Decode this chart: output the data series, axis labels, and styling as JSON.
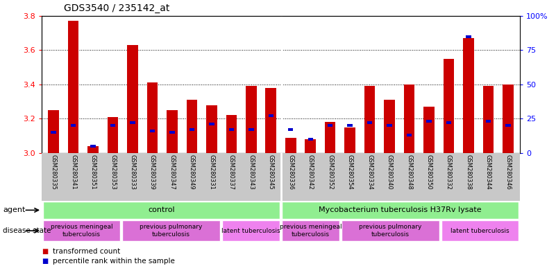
{
  "title": "GDS3540 / 235142_at",
  "samples": [
    "GSM280335",
    "GSM280341",
    "GSM280351",
    "GSM280353",
    "GSM280333",
    "GSM280339",
    "GSM280347",
    "GSM280349",
    "GSM280331",
    "GSM280337",
    "GSM280343",
    "GSM280345",
    "GSM280336",
    "GSM280342",
    "GSM280352",
    "GSM280354",
    "GSM280334",
    "GSM280340",
    "GSM280348",
    "GSM280350",
    "GSM280332",
    "GSM280338",
    "GSM280344",
    "GSM280346"
  ],
  "transformed_count": [
    3.25,
    3.77,
    3.04,
    3.21,
    3.63,
    3.41,
    3.25,
    3.31,
    3.28,
    3.22,
    3.39,
    3.38,
    3.09,
    3.08,
    3.18,
    3.15,
    3.39,
    3.31,
    3.4,
    3.27,
    3.55,
    3.67,
    3.39,
    3.4
  ],
  "percentile_rank": [
    15,
    20,
    5,
    20,
    22,
    16,
    15,
    17,
    21,
    17,
    17,
    27,
    17,
    10,
    20,
    20,
    22,
    20,
    13,
    23,
    22,
    85,
    23,
    20
  ],
  "ylim_left": [
    3.0,
    3.8
  ],
  "ylim_right": [
    0,
    100
  ],
  "yticks_left": [
    3.0,
    3.2,
    3.4,
    3.6,
    3.8
  ],
  "yticks_right": [
    0,
    25,
    50,
    75,
    100
  ],
  "bar_color_red": "#cc0000",
  "bar_color_blue": "#0000cc",
  "agent_groups": [
    {
      "label": "control",
      "start": 0,
      "end": 11
    },
    {
      "label": "Mycobacterium tuberculosis H37Rv lysate",
      "start": 12,
      "end": 23
    }
  ],
  "disease_groups": [
    {
      "label": "previous meningeal\ntuberculosis",
      "start": 0,
      "end": 3,
      "type": "prev"
    },
    {
      "label": "previous pulmonary\ntuberculosis",
      "start": 4,
      "end": 8,
      "type": "prev"
    },
    {
      "label": "latent tuberculosis",
      "start": 9,
      "end": 11,
      "type": "latent"
    },
    {
      "label": "previous meningeal\ntuberculosis",
      "start": 12,
      "end": 14,
      "type": "prev"
    },
    {
      "label": "previous pulmonary\ntuberculosis",
      "start": 15,
      "end": 19,
      "type": "prev"
    },
    {
      "label": "latent tuberculosis",
      "start": 20,
      "end": 23,
      "type": "latent"
    }
  ],
  "color_agent": "#90EE90",
  "color_disease_prev": "#DA70D6",
  "color_disease_latent": "#EE82EE",
  "color_label_bg": "#C8C8C8",
  "color_white": "#FFFFFF"
}
